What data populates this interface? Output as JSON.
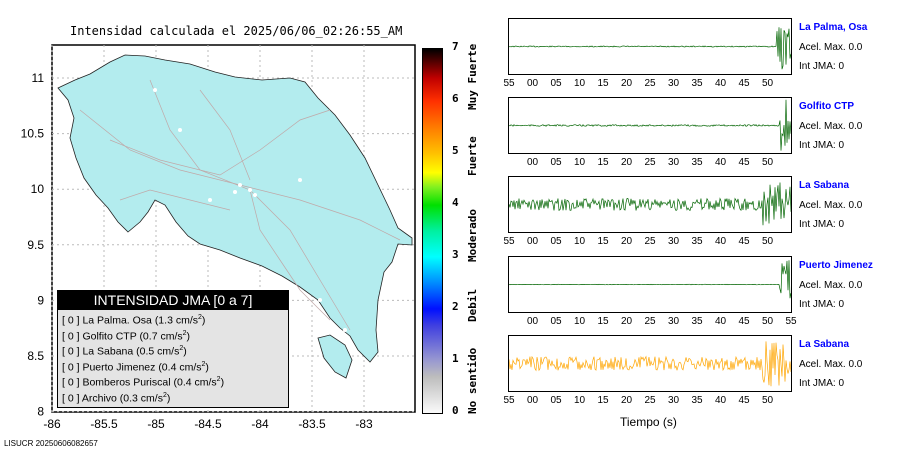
{
  "title": "Intensidad calculada el 2025/06/06_02:26:55_AM",
  "map": {
    "x_ticks": [
      "-86",
      "-85.5",
      "-85",
      "-84.5",
      "-84",
      "-83.5",
      "-83"
    ],
    "y_ticks": [
      "11",
      "10.5",
      "10",
      "9.5",
      "9",
      "8.5",
      "8"
    ],
    "fill_color": "#b3ecee"
  },
  "legend": {
    "title": "INTENSIDAD JMA [0 a 7]",
    "rows": [
      {
        "level": "[ 0 ]",
        "station": "La Palma. Osa",
        "acc": "(1.3 cm/s",
        "exp": "2",
        ")": ")"
      },
      {
        "level": "[ 0 ]",
        "station": "Golfito CTP",
        "acc": "(0.7 cm/s",
        "exp": "2"
      },
      {
        "level": "[ 0 ]",
        "station": "La Sabana",
        "acc": "(0.5 cm/s",
        "exp": "2"
      },
      {
        "level": "[ 0 ]",
        "station": "Puerto Jimenez",
        "acc": "(0.4 cm/s",
        "exp": "2"
      },
      {
        "level": "[ 0 ]",
        "station": "Bomberos Puriscal",
        "acc": "(0.4 cm/s",
        "exp": "2"
      },
      {
        "level": "[ 0 ]",
        "station": "Archivo",
        "acc": "(0.3 cm/s",
        "exp": "2"
      }
    ]
  },
  "colorbar": {
    "ticks": [
      "0",
      "1",
      "2",
      "3",
      "4",
      "5",
      "6",
      "7"
    ],
    "categories": [
      "No sentido",
      "Debil",
      "Moderado",
      "Fuerte",
      "Muy Fuerte"
    ]
  },
  "chart_data": {
    "type": "line",
    "xlabel": "Tiempo (s)",
    "panels": [
      {
        "station": "La Palma, Osa",
        "acel": "Acel. Max. 0.0",
        "int": "Int JMA: 0",
        "color": "#006400",
        "ticks": [
          "55",
          "00",
          "05",
          "10",
          "15",
          "20",
          "25",
          "30",
          "35",
          "40",
          "45",
          "50"
        ],
        "onset": 0.95,
        "noise": 0.02,
        "amp": 0.9
      },
      {
        "station": "Golfito CTP",
        "acel": "Acel. Max. 0.0",
        "int": "Int JMA: 0",
        "color": "#006400",
        "ticks": [
          "00",
          "05",
          "10",
          "15",
          "20",
          "25",
          "30",
          "35",
          "40",
          "45",
          "50"
        ],
        "onset": 0.96,
        "noise": 0.03,
        "amp": 0.95
      },
      {
        "station": "La Sabana",
        "acel": "Acel. Max. 0.0",
        "int": "Int JMA: 0",
        "color": "#006400",
        "ticks": [
          "55",
          "00",
          "05",
          "10",
          "15",
          "20",
          "25",
          "30",
          "35",
          "40",
          "45",
          "50"
        ],
        "onset": 0.9,
        "noise": 0.22,
        "amp": 0.8
      },
      {
        "station": "Puerto Jimenez",
        "acel": "Acel. Max. 0.0",
        "int": "Int JMA: 0",
        "color": "#006400",
        "ticks": [
          "00",
          "05",
          "10",
          "15",
          "20",
          "25",
          "30",
          "35",
          "40",
          "45",
          "50",
          "55"
        ],
        "onset": 0.96,
        "noise": 0.01,
        "amp": 0.9
      },
      {
        "station": "La Sabana",
        "acel": "Acel. Max. 0.0",
        "int": "Int JMA: 0",
        "color": "#ffa500",
        "ticks": [
          "55",
          "00",
          "05",
          "10",
          "15",
          "20",
          "25",
          "30",
          "35",
          "40",
          "45",
          "50"
        ],
        "onset": 0.9,
        "noise": 0.25,
        "amp": 0.85
      }
    ]
  },
  "footer": "LISUCR 20250606082657"
}
